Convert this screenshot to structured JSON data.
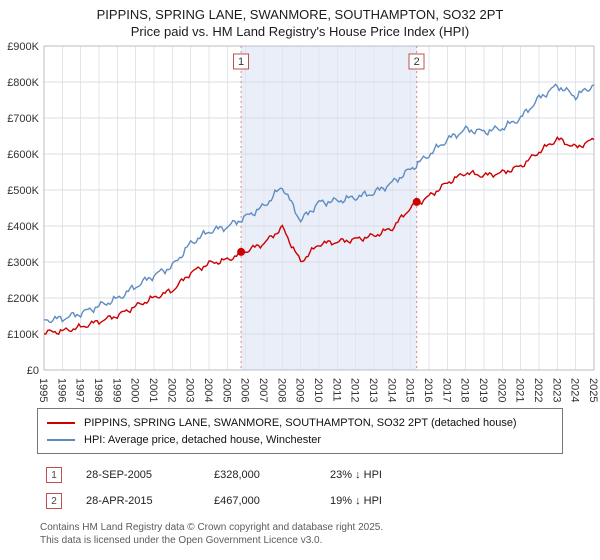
{
  "title": "PIPPINS, SPRING LANE, SWANMORE, SOUTHAMPTON, SO32 2PT",
  "subtitle": "Price paid vs. HM Land Registry's House Price Index (HPI)",
  "legend": {
    "items": [
      {
        "label": "PIPPINS, SPRING LANE, SWANMORE, SOUTHAMPTON, SO32 2PT (detached house)",
        "color": "#cc0000"
      },
      {
        "label": "HPI: Average price, detached house, Winchester",
        "color": "#5f8dc0"
      }
    ]
  },
  "events": [
    {
      "num": "1",
      "date": "28-SEP-2005",
      "price": "£328,000",
      "vs_hpi": "23% ↓ HPI"
    },
    {
      "num": "2",
      "date": "28-APR-2015",
      "price": "£467,000",
      "vs_hpi": "19% ↓ HPI"
    }
  ],
  "footer": {
    "line1": "Contains HM Land Registry data © Crown copyright and database right 2025.",
    "line2": "This data is licensed under the Open Government Licence v3.0."
  },
  "chart_data": {
    "type": "line",
    "title": "PIPPINS, SPRING LANE, SWANMORE, SOUTHAMPTON, SO32 2PT",
    "subtitle": "Price paid vs. HM Land Registry's House Price Index (HPI)",
    "xlabel": "",
    "ylabel": "",
    "grid": true,
    "legend_position": "bottom",
    "x_years": [
      1995,
      1996,
      1997,
      1998,
      1999,
      2000,
      2001,
      2002,
      2003,
      2004,
      2005,
      2006,
      2007,
      2008,
      2009,
      2010,
      2011,
      2012,
      2013,
      2014,
      2015,
      2016,
      2017,
      2018,
      2019,
      2020,
      2021,
      2022,
      2023,
      2024,
      2025
    ],
    "ylim": [
      0,
      900000
    ],
    "y_ticks": [
      0,
      100000,
      200000,
      300000,
      400000,
      500000,
      600000,
      700000,
      800000,
      900000
    ],
    "y_tick_labels": [
      "£0",
      "£100K",
      "£200K",
      "£300K",
      "£400K",
      "£500K",
      "£600K",
      "£700K",
      "£800K",
      "£900K"
    ],
    "series": [
      {
        "name": "PIPPINS, SPRING LANE, SWANMORE, SOUTHAMPTON, SO32 2PT (detached house)",
        "color": "#cc0000",
        "values": [
          104000,
          108000,
          119000,
          135000,
          151000,
          177000,
          201000,
          221000,
          270000,
          296000,
          306000,
          330000,
          352000,
          396000,
          300000,
          350000,
          356000,
          363000,
          373000,
          394000,
          452000,
          482000,
          520000,
          548000,
          540000,
          548000,
          566000,
          606000,
          642000,
          618000,
          640000
        ]
      },
      {
        "name": "HPI: Average price, detached house, Winchester",
        "color": "#5f8dc0",
        "values": [
          138000,
          143000,
          157000,
          178000,
          198000,
          232000,
          263000,
          288000,
          352000,
          385000,
          398000,
          425000,
          455000,
          510000,
          415000,
          465000,
          470000,
          480000,
          492000,
          520000,
          558000,
          598000,
          640000,
          668000,
          662000,
          672000,
          700000,
          755000,
          790000,
          760000,
          792000
        ]
      }
    ],
    "markers": [
      {
        "x": 2005.75,
        "y": 328000,
        "label": "1"
      },
      {
        "x": 2015.33,
        "y": 467000,
        "label": "2"
      }
    ],
    "shaded_region": {
      "from": 2005.75,
      "to": 2015.33,
      "color": "#e9eef9"
    },
    "event_line_color": "#dd8888"
  }
}
